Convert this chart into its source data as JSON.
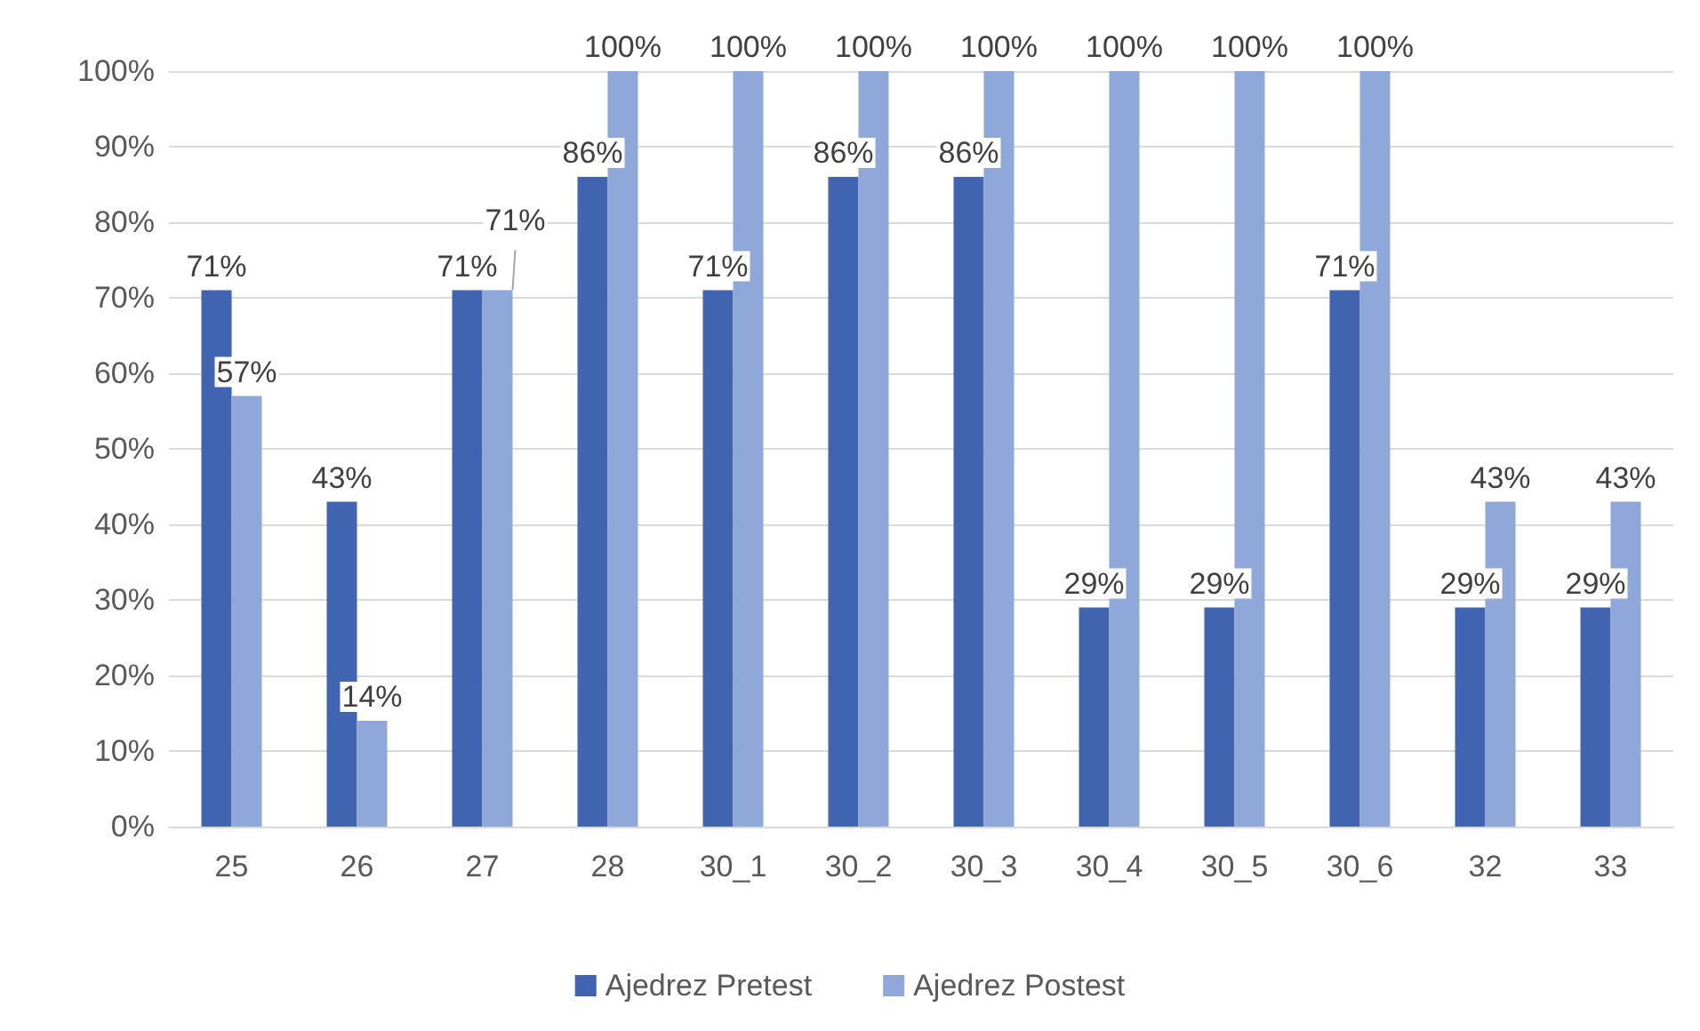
{
  "chart_data": {
    "type": "bar",
    "categories": [
      "25",
      "26",
      "27",
      "28",
      "30_1",
      "30_2",
      "30_3",
      "30_4",
      "30_5",
      "30_6",
      "32",
      "33"
    ],
    "series": [
      {
        "name": "Ajedrez Pretest",
        "color": "#4064b0",
        "values": [
          71,
          43,
          71,
          86,
          71,
          86,
          86,
          29,
          29,
          71,
          29,
          29
        ],
        "value_labels": [
          "71%",
          "43%",
          "71%",
          "86%",
          "71%",
          "86%",
          "86%",
          "29%",
          "29%",
          "71%",
          "29%",
          "29%"
        ]
      },
      {
        "name": "Ajedrez Postest",
        "color": "#8fa7d9",
        "values": [
          57,
          14,
          71,
          100,
          100,
          100,
          100,
          100,
          100,
          100,
          43,
          43
        ],
        "value_labels": [
          "57%",
          "14%",
          "71%",
          "100%",
          "100%",
          "100%",
          "100%",
          "100%",
          "100%",
          "100%",
          "43%",
          "43%"
        ]
      }
    ],
    "ylim": [
      0,
      100
    ],
    "yticks": [
      {
        "value": 0,
        "label": "0%"
      },
      {
        "value": 10,
        "label": "10%"
      },
      {
        "value": 20,
        "label": "20%"
      },
      {
        "value": 30,
        "label": "30%"
      },
      {
        "value": 40,
        "label": "40%"
      },
      {
        "value": 50,
        "label": "50%"
      },
      {
        "value": 60,
        "label": "60%"
      },
      {
        "value": 70,
        "label": "70%"
      },
      {
        "value": 80,
        "label": "80%"
      },
      {
        "value": 90,
        "label": "90%"
      },
      {
        "value": 100,
        "label": "100%"
      }
    ],
    "grid": "y",
    "legend": "bottom"
  }
}
